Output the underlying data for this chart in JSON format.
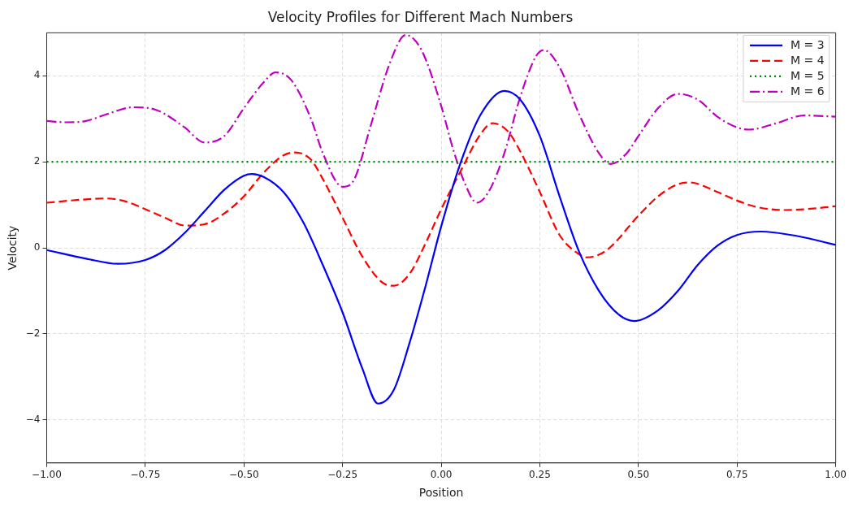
{
  "chart_data": {
    "type": "line",
    "title": "Velocity Profiles for Different Mach Numbers",
    "xlabel": "Position",
    "ylabel": "Velocity",
    "xlim": [
      -1,
      1
    ],
    "ylim": [
      -5,
      5
    ],
    "xticks": [
      {
        "value": -1,
        "label": "−1.00"
      },
      {
        "value": -0.75,
        "label": "−0.75"
      },
      {
        "value": -0.5,
        "label": "−0.50"
      },
      {
        "value": -0.25,
        "label": "−0.25"
      },
      {
        "value": 0,
        "label": "0.00"
      },
      {
        "value": 0.25,
        "label": "0.25"
      },
      {
        "value": 0.5,
        "label": "0.50"
      },
      {
        "value": 0.75,
        "label": "0.75"
      },
      {
        "value": 1,
        "label": "1.00"
      }
    ],
    "yticks": [
      {
        "value": -4,
        "label": "−4"
      },
      {
        "value": -2,
        "label": "−2"
      },
      0,
      2,
      4
    ],
    "grid": true,
    "legend": "top right",
    "marker": "none",
    "series": [
      {
        "name": "M = 3",
        "color": "#0000ff",
        "line_style": "solid",
        "x": [
          -1,
          -0.9,
          -0.82,
          -0.75,
          -0.7,
          -0.65,
          -0.6,
          -0.55,
          -0.5,
          -0.48,
          -0.45,
          -0.4,
          -0.35,
          -0.3,
          -0.25,
          -0.2,
          -0.16,
          -0.12,
          -0.08,
          -0.04,
          0,
          0.05,
          0.1,
          0.16,
          0.2,
          0.25,
          0.3,
          0.35,
          0.4,
          0.45,
          0.49,
          0.55,
          0.6,
          0.65,
          0.7,
          0.75,
          0.81,
          0.9,
          1
        ],
        "values": [
          -0.05,
          -0.25,
          -0.37,
          -0.28,
          -0.05,
          0.35,
          0.85,
          1.35,
          1.68,
          1.72,
          1.65,
          1.3,
          0.6,
          -0.4,
          -1.5,
          -2.8,
          -3.62,
          -3.3,
          -2.2,
          -0.9,
          0.5,
          2.0,
          3.1,
          3.65,
          3.45,
          2.6,
          1.2,
          -0.1,
          -1.0,
          -1.55,
          -1.7,
          -1.45,
          -1.0,
          -0.4,
          0.05,
          0.3,
          0.38,
          0.28,
          0.07
        ]
      },
      {
        "name": "M = 4",
        "color": "#ff0000",
        "line_style": "dashed",
        "x": [
          -1,
          -0.9,
          -0.85,
          -0.8,
          -0.75,
          -0.7,
          -0.65,
          -0.6,
          -0.55,
          -0.5,
          -0.45,
          -0.4,
          -0.37,
          -0.33,
          -0.3,
          -0.25,
          -0.2,
          -0.15,
          -0.12,
          -0.08,
          -0.04,
          0,
          0.05,
          0.1,
          0.13,
          0.17,
          0.2,
          0.25,
          0.3,
          0.35,
          0.37,
          0.42,
          0.5,
          0.55,
          0.6,
          0.63,
          0.7,
          0.75,
          0.8,
          0.87,
          0.95,
          1
        ],
        "values": [
          1.05,
          1.13,
          1.15,
          1.08,
          0.9,
          0.7,
          0.52,
          0.55,
          0.8,
          1.2,
          1.75,
          2.15,
          2.22,
          2.05,
          1.6,
          0.7,
          -0.2,
          -0.8,
          -0.88,
          -0.6,
          0.1,
          0.9,
          1.8,
          2.65,
          2.9,
          2.7,
          2.25,
          1.3,
          0.3,
          -0.15,
          -0.22,
          -0.05,
          0.75,
          1.2,
          1.48,
          1.52,
          1.3,
          1.1,
          0.95,
          0.88,
          0.92,
          0.97
        ]
      },
      {
        "name": "M = 5",
        "color": "#008000",
        "line_style": "dotted",
        "x": [
          -1,
          1
        ],
        "values": [
          2,
          2
        ]
      },
      {
        "name": "M = 6",
        "color": "#bf00bf",
        "line_style": "dashdot",
        "x": [
          -1,
          -0.95,
          -0.9,
          -0.85,
          -0.78,
          -0.72,
          -0.65,
          -0.6,
          -0.55,
          -0.5,
          -0.45,
          -0.42,
          -0.38,
          -0.33,
          -0.3,
          -0.25,
          -0.22,
          -0.18,
          -0.13,
          -0.09,
          -0.05,
          0,
          0.03,
          0.06,
          0.09,
          0.12,
          0.16,
          0.2,
          0.24,
          0.26,
          0.3,
          0.35,
          0.4,
          0.43,
          0.47,
          0.5,
          0.55,
          0.6,
          0.65,
          0.7,
          0.75,
          0.78,
          0.85,
          0.92,
          1
        ],
        "values": [
          2.95,
          2.92,
          2.95,
          3.1,
          3.27,
          3.2,
          2.8,
          2.45,
          2.6,
          3.25,
          3.85,
          4.08,
          3.9,
          3.0,
          2.2,
          1.42,
          1.6,
          2.8,
          4.3,
          4.95,
          4.6,
          3.3,
          2.3,
          1.5,
          1.05,
          1.3,
          2.2,
          3.5,
          4.45,
          4.6,
          4.2,
          3.1,
          2.2,
          1.95,
          2.2,
          2.6,
          3.25,
          3.58,
          3.45,
          3.05,
          2.8,
          2.75,
          2.9,
          3.08,
          3.05
        ]
      }
    ]
  }
}
